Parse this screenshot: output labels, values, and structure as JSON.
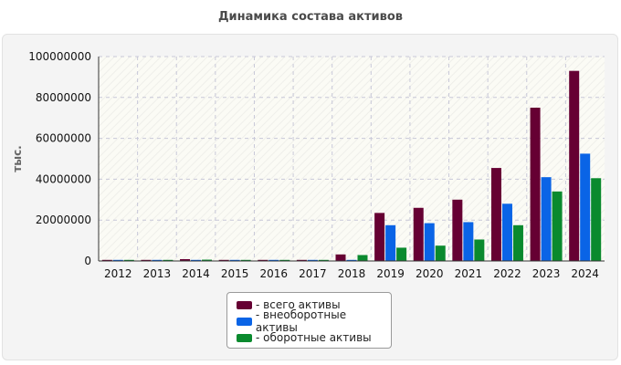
{
  "chart_data": {
    "type": "bar",
    "title": "Динамика состава активов",
    "ylabel": "тыс.",
    "xlabel": "",
    "ylim": [
      0,
      100000000
    ],
    "yticks": [
      0,
      20000000,
      40000000,
      60000000,
      80000000,
      100000000
    ],
    "ytick_labels": [
      "0",
      "20000000",
      "40000000",
      "60000000",
      "80000000",
      "100000000"
    ],
    "grid": true,
    "legend_position": "bottom-center",
    "categories": [
      "2012",
      "2013",
      "2014",
      "2015",
      "2016",
      "2017",
      "2018",
      "2019",
      "2020",
      "2021",
      "2022",
      "2023",
      "2024"
    ],
    "series": [
      {
        "name": "всего активы",
        "legend_label": "- всего активы",
        "color": "#660033",
        "values": [
          300000,
          400000,
          900000,
          500000,
          300000,
          400000,
          3200000,
          23500000,
          26000000,
          30000000,
          45500000,
          75000000,
          93000000
        ]
      },
      {
        "name": "внеоборотные активы",
        "legend_label": "- внеоборотные активы",
        "color": "#0a64e6",
        "values": [
          100000,
          150000,
          250000,
          150000,
          100000,
          150000,
          300000,
          17500000,
          18500000,
          19000000,
          28000000,
          41000000,
          52500000
        ]
      },
      {
        "name": "оборотные активы",
        "legend_label": "- оборотные активы",
        "color": "#0a8a2e",
        "values": [
          200000,
          250000,
          650000,
          350000,
          200000,
          250000,
          2900000,
          6500000,
          7500000,
          10500000,
          17500000,
          34000000,
          40500000
        ]
      }
    ]
  }
}
